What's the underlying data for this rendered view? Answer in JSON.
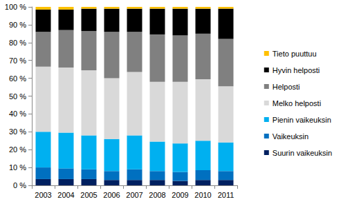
{
  "chart_data": {
    "type": "bar",
    "stacked": true,
    "grid": false,
    "legend": "right",
    "categories": [
      "2003",
      "2004",
      "2005",
      "2006",
      "2007",
      "2008",
      "2009",
      "2010",
      "2011"
    ],
    "ylim": [
      0,
      100
    ],
    "yticks": [
      {
        "value": 0,
        "label": "0 %"
      },
      {
        "value": 10,
        "label": "10 %"
      },
      {
        "value": 20,
        "label": "20 %"
      },
      {
        "value": 30,
        "label": "30 %"
      },
      {
        "value": 40,
        "label": "40 %"
      },
      {
        "value": 50,
        "label": "50 %"
      },
      {
        "value": 60,
        "label": "60 %"
      },
      {
        "value": 70,
        "label": "70 %"
      },
      {
        "value": 80,
        "label": "80 %"
      },
      {
        "value": 90,
        "label": "90 %"
      },
      {
        "value": 100,
        "label": "100 %"
      }
    ],
    "series": [
      {
        "name": "Suurin vaikeuksin",
        "color": "#002060",
        "values": [
          3.5,
          3.5,
          3.5,
          3,
          3,
          3,
          2.5,
          3,
          3
        ]
      },
      {
        "name": "Vaikeuksin",
        "color": "#0070c0",
        "values": [
          6.5,
          6,
          5.5,
          5,
          6,
          5,
          5,
          5.5,
          5
        ]
      },
      {
        "name": "Pienin vaikeuksin",
        "color": "#00b0f0",
        "values": [
          20,
          20,
          19,
          18,
          19,
          16.5,
          16,
          16.5,
          16
        ]
      },
      {
        "name": "Melko helposti",
        "color": "#d9d9d9",
        "values": [
          36.5,
          36.5,
          36.5,
          34,
          35.5,
          33.5,
          34.5,
          34.5,
          31.5
        ]
      },
      {
        "name": "Helposti",
        "color": "#808080",
        "values": [
          19.5,
          21,
          22,
          26,
          22.5,
          26.5,
          26,
          25.5,
          26.5
        ]
      },
      {
        "name": "Hyvin helposti",
        "color": "#000000",
        "values": [
          12.5,
          11.5,
          12.5,
          13,
          13,
          14.5,
          15,
          14,
          17
        ]
      },
      {
        "name": "Tieto puuttuu",
        "color": "#ffc000",
        "values": [
          1.5,
          1.5,
          1,
          1,
          1,
          1,
          1,
          1,
          1
        ]
      }
    ]
  }
}
